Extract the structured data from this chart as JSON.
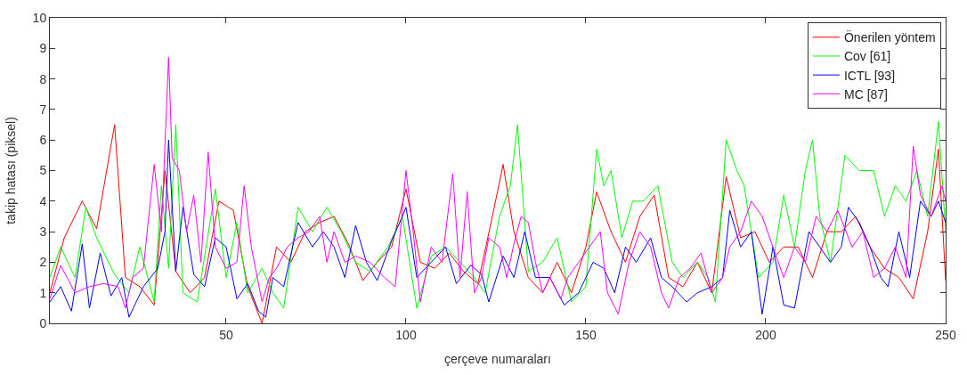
{
  "chart_data": {
    "type": "line",
    "xlabel": "çerçeve numaraları",
    "ylabel": "takip hatası (piksel)",
    "xlim": [
      1,
      250
    ],
    "xticks": [
      50,
      100,
      150,
      200,
      250
    ],
    "ylim": [
      0,
      10
    ],
    "yticks": [
      0,
      1,
      2,
      3,
      4,
      5,
      6,
      7,
      8,
      9,
      10
    ],
    "legend": "top right",
    "marker": "none",
    "line_style": "solid",
    "series": [
      {
        "name": "Önerilen yöntem",
        "color": "#ff0000",
        "x": [
          1,
          5,
          10,
          14,
          19,
          22,
          26,
          30,
          33,
          36,
          40,
          44,
          48,
          52,
          56,
          60,
          64,
          68,
          72,
          76,
          80,
          84,
          88,
          92,
          96,
          100,
          104,
          108,
          112,
          116,
          120,
          124,
          127,
          130,
          134,
          138,
          142,
          146,
          150,
          153,
          157,
          161,
          165,
          169,
          173,
          177,
          181,
          185,
          189,
          193,
          197,
          201,
          205,
          209,
          213,
          217,
          221,
          225,
          229,
          233,
          237,
          241,
          245,
          248,
          250
        ],
        "values": [
          1.0,
          2.8,
          4.0,
          3.1,
          6.5,
          1.5,
          1.2,
          0.6,
          5.0,
          1.7,
          1.0,
          1.5,
          4.0,
          3.7,
          1.2,
          0.0,
          2.5,
          2.0,
          3.0,
          3.3,
          3.5,
          2.6,
          1.4,
          2.0,
          2.5,
          4.4,
          2.0,
          1.8,
          2.3,
          1.7,
          1.3,
          3.5,
          5.2,
          3.0,
          1.5,
          1.0,
          2.0,
          1.0,
          2.5,
          4.3,
          3.0,
          2.0,
          3.5,
          4.2,
          1.5,
          1.2,
          2.0,
          1.0,
          4.8,
          2.8,
          3.0,
          2.0,
          2.5,
          2.5,
          1.5,
          3.0,
          3.0,
          3.5,
          2.5,
          1.8,
          1.5,
          0.8,
          3.0,
          5.7,
          1.4
        ]
      },
      {
        "name": "Cov [61]",
        "color": "#00ff00",
        "x": [
          1,
          4,
          8,
          11,
          14,
          19,
          23,
          26,
          30,
          32,
          34,
          36,
          38,
          42,
          47,
          50,
          53,
          56,
          60,
          63,
          66,
          70,
          74,
          78,
          82,
          86,
          90,
          95,
          99,
          103,
          107,
          111,
          115,
          119,
          122,
          126,
          129,
          131,
          134,
          138,
          142,
          146,
          150,
          153,
          155,
          157,
          160,
          163,
          166,
          170,
          174,
          177,
          181,
          184,
          186,
          189,
          192,
          194,
          198,
          202,
          205,
          208,
          211,
          213,
          215,
          218,
          222,
          226,
          230,
          233,
          236,
          239,
          242,
          245,
          248,
          250
        ],
        "values": [
          1.5,
          2.5,
          1.5,
          3.8,
          2.8,
          1.6,
          1.0,
          2.5,
          0.7,
          4.5,
          1.8,
          6.5,
          1.0,
          0.7,
          4.4,
          1.5,
          3.3,
          1.0,
          1.8,
          1.0,
          0.5,
          3.8,
          3.0,
          3.8,
          3.0,
          2.0,
          1.7,
          2.5,
          3.5,
          0.5,
          2.2,
          2.5,
          2.0,
          1.5,
          1.0,
          3.5,
          4.5,
          6.5,
          1.7,
          2.0,
          2.8,
          0.7,
          1.2,
          5.7,
          4.5,
          5.0,
          2.8,
          4.0,
          4.0,
          4.5,
          2.0,
          1.5,
          2.0,
          1.5,
          0.7,
          6.0,
          5.0,
          4.5,
          1.5,
          2.0,
          4.2,
          2.5,
          5.0,
          6.0,
          3.5,
          2.0,
          5.5,
          5.0,
          5.0,
          3.5,
          4.5,
          4.0,
          5.0,
          3.5,
          6.6,
          3.0
        ]
      },
      {
        "name": "ICTL [93]",
        "color": "#0000ff",
        "x": [
          1,
          4,
          7,
          10,
          12,
          15,
          18,
          21,
          23,
          27,
          31,
          33,
          34,
          36,
          38,
          41,
          44,
          47,
          50,
          53,
          56,
          59,
          61,
          63,
          66,
          70,
          74,
          77,
          80,
          83,
          86,
          89,
          92,
          96,
          99,
          100,
          103,
          107,
          111,
          114,
          118,
          121,
          123,
          127,
          130,
          133,
          136,
          140,
          144,
          148,
          152,
          155,
          158,
          161,
          164,
          168,
          171,
          174,
          178,
          181,
          185,
          188,
          190,
          193,
          196,
          199,
          202,
          205,
          208,
          212,
          215,
          218,
          221,
          223,
          226,
          229,
          232,
          234,
          237,
          240,
          243,
          246,
          248,
          250
        ],
        "values": [
          0.7,
          1.2,
          0.4,
          2.6,
          0.5,
          2.3,
          0.9,
          1.5,
          0.2,
          1.2,
          1.8,
          3.0,
          6.0,
          1.7,
          3.8,
          1.6,
          1.2,
          2.8,
          2.5,
          0.8,
          1.3,
          0.4,
          0.2,
          1.5,
          1.2,
          3.3,
          2.5,
          3.0,
          2.5,
          1.5,
          3.2,
          2.0,
          1.4,
          2.7,
          3.5,
          3.8,
          1.5,
          2.0,
          2.5,
          1.3,
          1.9,
          1.6,
          0.7,
          2.2,
          1.5,
          3.0,
          1.5,
          1.5,
          0.6,
          1.0,
          2.0,
          1.8,
          1.0,
          2.5,
          2.0,
          2.8,
          1.5,
          1.2,
          0.7,
          1.0,
          1.2,
          1.5,
          3.7,
          2.5,
          3.0,
          0.3,
          2.5,
          0.6,
          0.5,
          3.0,
          2.5,
          2.0,
          2.5,
          3.8,
          3.3,
          2.5,
          1.5,
          1.2,
          3.0,
          1.5,
          4.0,
          3.5,
          4.0,
          3.3
        ]
      },
      {
        "name": "MC [87]",
        "color": "#ff00ff",
        "x": [
          1,
          4,
          8,
          12,
          16,
          20,
          22,
          24,
          27,
          30,
          32,
          34,
          35,
          37,
          39,
          41,
          43,
          45,
          47,
          50,
          53,
          55,
          57,
          60,
          62,
          64,
          67,
          70,
          73,
          76,
          78,
          80,
          83,
          86,
          90,
          94,
          97,
          100,
          102,
          104,
          107,
          110,
          113,
          115,
          117,
          119,
          121,
          123,
          126,
          128,
          130,
          132,
          134,
          136,
          138,
          140,
          143,
          145,
          148,
          151,
          154,
          156,
          159,
          162,
          165,
          168,
          171,
          173,
          176,
          179,
          182,
          185,
          188,
          190,
          193,
          196,
          199,
          202,
          205,
          208,
          211,
          214,
          217,
          220,
          224,
          227,
          230,
          233,
          236,
          239,
          241,
          243,
          246,
          249,
          250
        ],
        "values": [
          0.8,
          1.9,
          1.0,
          1.2,
          1.3,
          1.2,
          0.5,
          1.5,
          1.8,
          5.2,
          3.0,
          8.7,
          5.4,
          5.0,
          3.0,
          4.2,
          2.0,
          5.6,
          2.5,
          1.8,
          2.0,
          4.5,
          2.5,
          0.7,
          1.5,
          1.8,
          2.5,
          2.8,
          3.0,
          3.5,
          2.0,
          3.0,
          2.0,
          2.2,
          2.0,
          1.5,
          1.2,
          5.0,
          3.0,
          0.7,
          2.5,
          2.0,
          4.9,
          1.5,
          4.3,
          1.0,
          1.5,
          2.8,
          2.5,
          1.5,
          2.6,
          3.5,
          3.3,
          2.0,
          1.0,
          1.5,
          0.8,
          1.5,
          2.0,
          2.5,
          3.0,
          1.0,
          0.3,
          2.0,
          3.0,
          2.5,
          1.0,
          0.5,
          1.5,
          1.8,
          2.3,
          1.0,
          1.5,
          2.5,
          3.0,
          4.0,
          3.5,
          2.5,
          1.5,
          2.5,
          2.0,
          3.5,
          3.0,
          3.7,
          2.5,
          3.0,
          1.5,
          1.8,
          2.5,
          1.5,
          5.8,
          4.2,
          3.5,
          4.5,
          4.0
        ]
      }
    ]
  }
}
